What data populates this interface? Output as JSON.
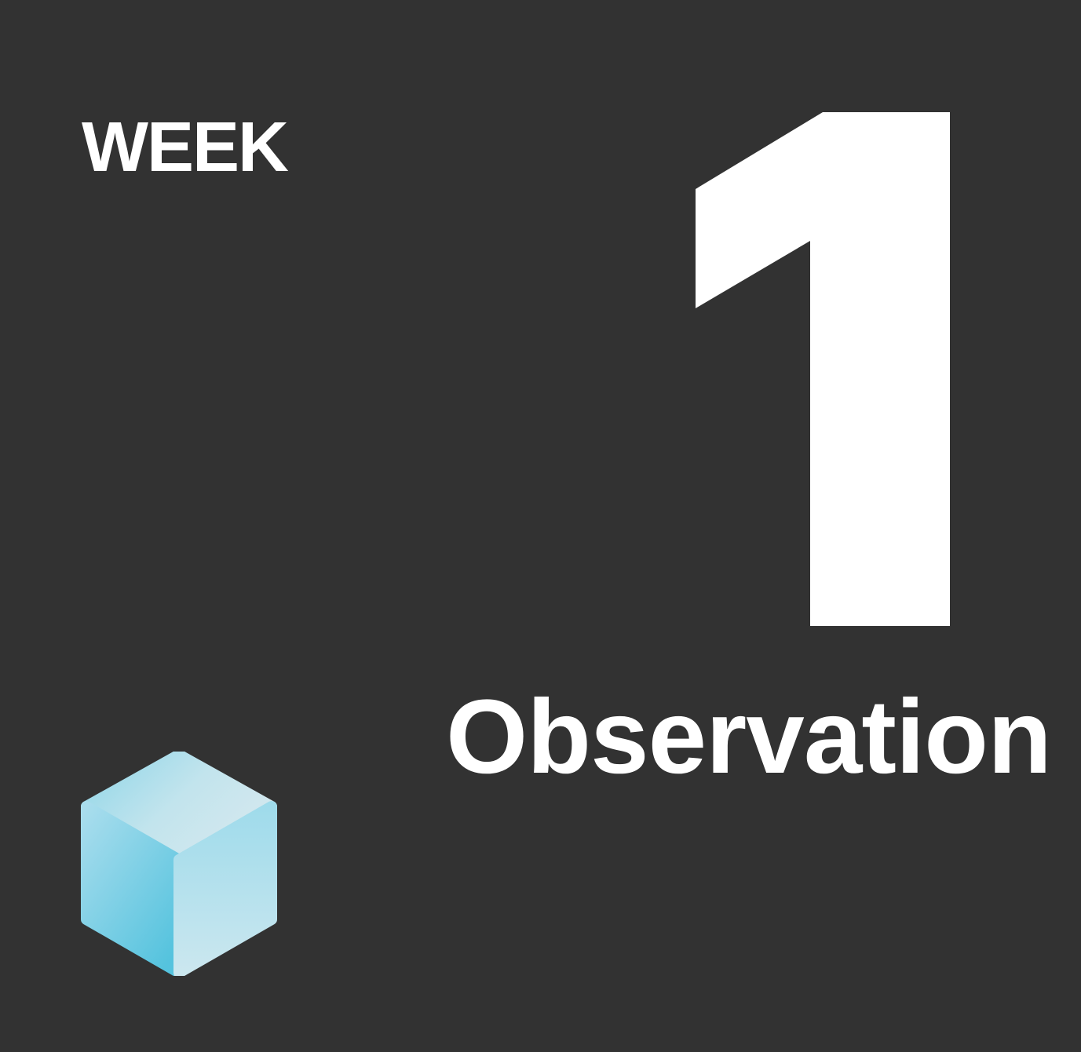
{
  "week": {
    "label": "WEEK",
    "number": "1"
  },
  "title": "Observation",
  "logo": {
    "icon": "cube-icon",
    "colors": {
      "top_light": "#c9e4ec",
      "top_dark": "#8fd3e6",
      "left_light": "#a8dcea",
      "left_dark": "#5ec6df",
      "right_light": "#c6e6ef",
      "right_dark": "#8ed3e5"
    }
  },
  "colors": {
    "background": "#323232",
    "text": "#ffffff"
  }
}
